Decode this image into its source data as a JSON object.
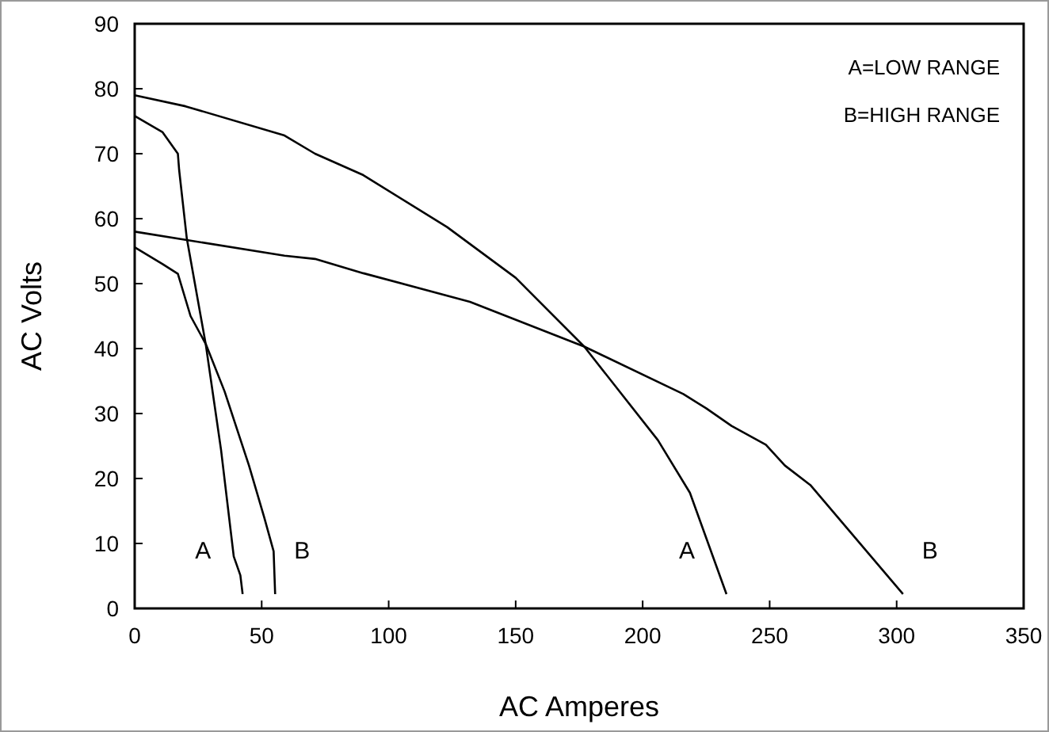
{
  "chart_data": {
    "type": "line",
    "xlabel": "AC Amperes",
    "ylabel": "AC Volts",
    "xlim": [
      0,
      350
    ],
    "ylim": [
      0,
      90
    ],
    "xticks": [
      0,
      50,
      100,
      150,
      200,
      250,
      300,
      350
    ],
    "yticks": [
      0,
      10,
      20,
      30,
      40,
      50,
      60,
      70,
      80,
      90
    ],
    "grid": false,
    "marker": "none",
    "line_style": "solid",
    "series": [
      {
        "color": "#000000",
        "x": [
          0,
          11,
          17,
          17.5,
          20.5,
          28,
          34,
          39,
          41.6,
          42.5
        ],
        "values": [
          75.8,
          73.3,
          70,
          67.5,
          57,
          40.6,
          24.4,
          8,
          5.1,
          2.2
        ]
      },
      {
        "color": "#000000",
        "x": [
          0,
          11,
          17,
          22,
          28,
          35.4,
          45,
          51,
          54.7,
          55.3
        ],
        "values": [
          55.6,
          53,
          51.5,
          45,
          40.7,
          33.4,
          22,
          14,
          8.8,
          2.2
        ]
      },
      {
        "color": "#000000",
        "x": [
          0,
          20,
          59,
          71,
          90,
          123,
          150,
          177,
          206,
          218.6,
          233
        ],
        "values": [
          79,
          77.3,
          72.8,
          70,
          66.7,
          58.7,
          50.9,
          40.3,
          25.9,
          17.8,
          2.2
        ]
      },
      {
        "color": "#000000",
        "x": [
          0,
          59,
          71,
          90,
          132,
          177,
          216,
          225,
          235,
          248.5,
          256,
          266,
          302.5
        ],
        "values": [
          58,
          54.3,
          53.8,
          51.6,
          47.2,
          40.3,
          33,
          30.8,
          28.1,
          25.2,
          22,
          19,
          2.2
        ]
      }
    ],
    "annotations": [
      "A",
      "B",
      "A",
      "B",
      "A=LOW RANGE",
      "B=HIGH RANGE"
    ]
  }
}
